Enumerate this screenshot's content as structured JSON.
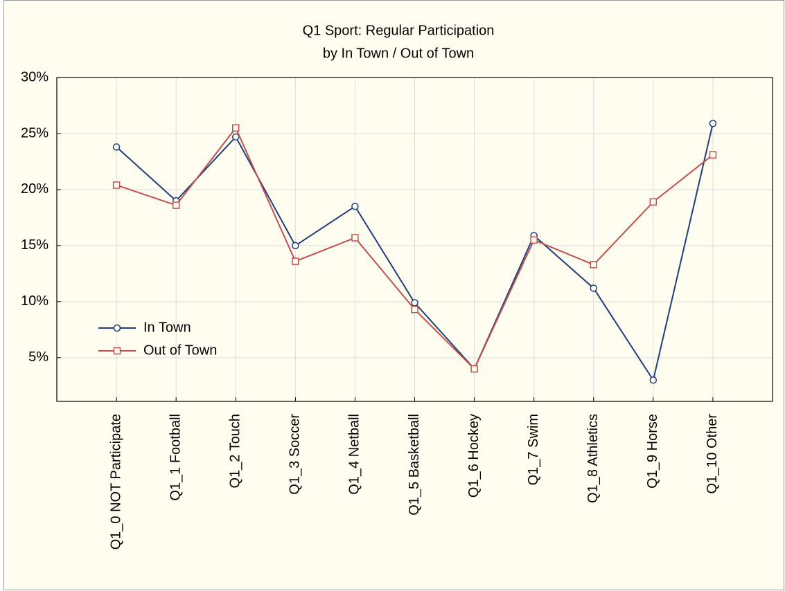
{
  "chart_data": {
    "type": "line",
    "title": "Q1 Sport: Regular Participation",
    "subtitle": "by In Town / Out of Town",
    "categories": [
      "Q1_0 NOT Participate",
      "Q1_1 Football",
      "Q1_2 Touch",
      "Q1_3 Soccer",
      "Q1_4 Netball",
      "Q1_5 Basketball",
      "Q1_6 Hockey",
      "Q1_7 Swim",
      "Q1_8 Athletics",
      "Q1_9 Horse",
      "Q1_10 Other"
    ],
    "series": [
      {
        "name": "In Town",
        "color": "#1f3d7a",
        "marker": "circle",
        "values": [
          23.8,
          19.0,
          24.7,
          15.0,
          18.5,
          9.9,
          4.0,
          15.9,
          11.2,
          3.0,
          25.9
        ]
      },
      {
        "name": "Out of Town",
        "color": "#c0504d",
        "marker": "square",
        "values": [
          20.4,
          18.6,
          25.5,
          13.6,
          15.7,
          9.3,
          4.0,
          15.5,
          13.3,
          18.9,
          23.1
        ]
      }
    ],
    "ylim": [
      1.1,
      30
    ],
    "yticks": [
      {
        "value": 5,
        "label": "5%"
      },
      {
        "value": 10,
        "label": "10%"
      },
      {
        "value": 15,
        "label": "15%"
      },
      {
        "value": 20,
        "label": "20%"
      },
      {
        "value": 25,
        "label": "25%"
      },
      {
        "value": 30,
        "label": "30%"
      }
    ],
    "grid": true,
    "legend": "lower-left"
  }
}
